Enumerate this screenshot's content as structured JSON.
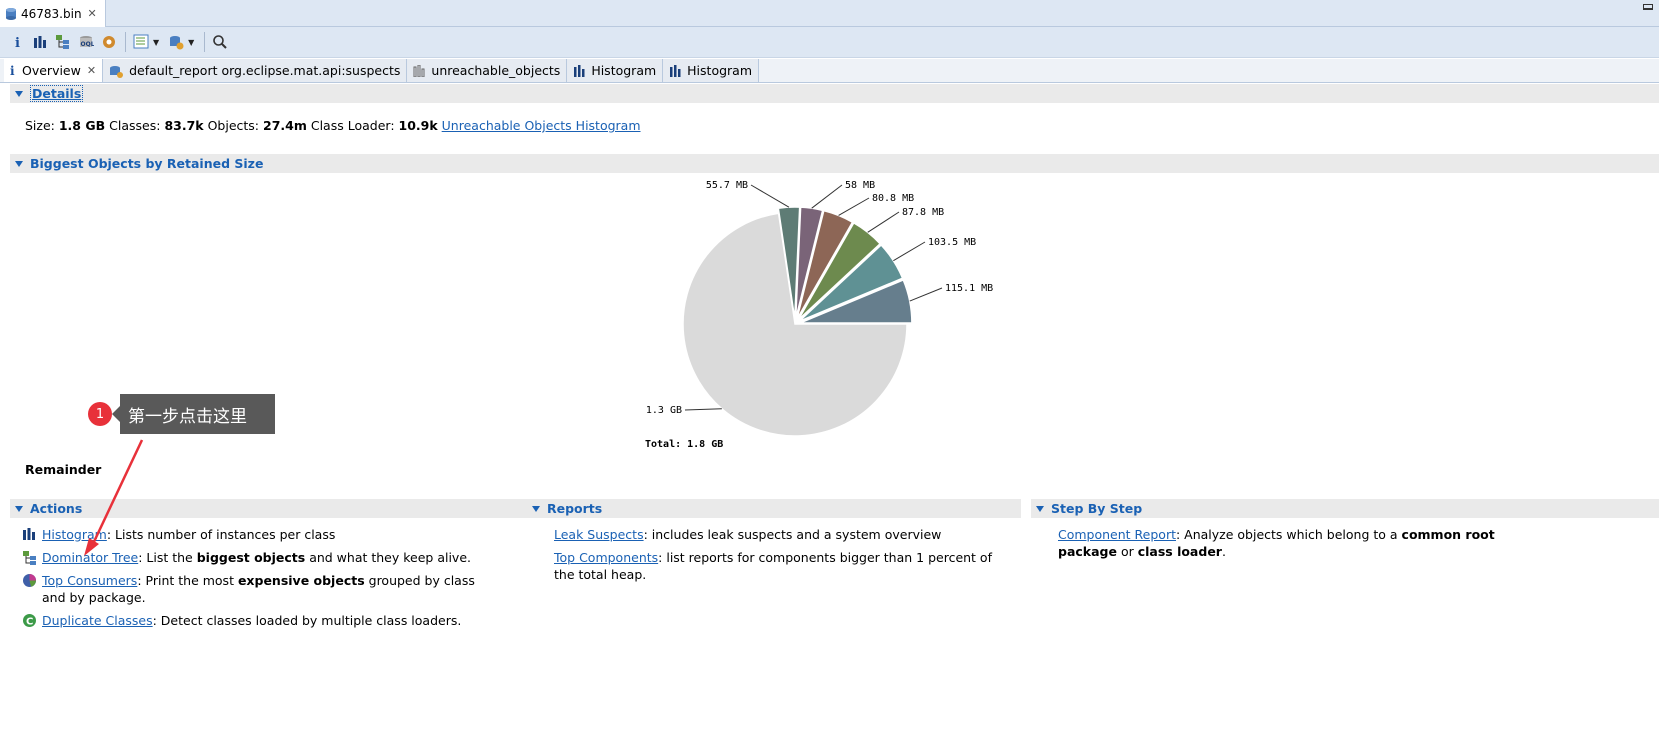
{
  "editor_tab": {
    "label": "46783.bin",
    "close": "✕"
  },
  "subtabs": [
    {
      "label": "Overview",
      "icon": "info-icon",
      "active": true
    },
    {
      "label": "default_report  org.eclipse.mat.api:suspects",
      "icon": "report-icon"
    },
    {
      "label": "unreachable_objects",
      "icon": "histogram-icon"
    },
    {
      "label": "Histogram",
      "icon": "histogram-icon"
    },
    {
      "label": "Histogram",
      "icon": "histogram-icon"
    }
  ],
  "details": {
    "title": "Details",
    "size_label": "Size:",
    "size_value": "1.8 GB",
    "classes_label": "Classes:",
    "classes_value": "83.7k",
    "objects_label": "Objects:",
    "objects_value": "27.4m",
    "loader_label": "Class Loader:",
    "loader_value": "10.9k",
    "link": "Unreachable Objects Histogram"
  },
  "biggest": {
    "title": "Biggest Objects by Retained Size",
    "total": "Total: 1.8 GB",
    "remainder": "Remainder"
  },
  "chart_data": {
    "type": "pie",
    "slices": [
      {
        "label": "115.1 MB",
        "value": 115.1,
        "color": "#667e8d"
      },
      {
        "label": "103.5 MB",
        "value": 103.5,
        "color": "#5f9194"
      },
      {
        "label": "87.8 MB",
        "value": 87.8,
        "color": "#6d8a4e"
      },
      {
        "label": "80.8 MB",
        "value": 80.8,
        "color": "#8d6656"
      },
      {
        "label": "58 MB",
        "value": 58,
        "color": "#7a6478"
      },
      {
        "label": "55.7 MB",
        "value": 55.7,
        "color": "#5e7c75"
      },
      {
        "label": "1.3 GB",
        "value": 1331.2,
        "color": "#dadada"
      }
    ],
    "total_label": "Total: 1.8 GB"
  },
  "actions": {
    "title": "Actions",
    "items": [
      {
        "link": "Histogram",
        "text": ": Lists number of instances per class"
      },
      {
        "link": "Dominator Tree",
        "pre": ": List the ",
        "bold": "biggest objects",
        "post": " and what they keep alive."
      },
      {
        "link": "Top Consumers",
        "pre": ": Print the most ",
        "bold": "expensive objects",
        "post": " grouped by class and by package."
      },
      {
        "link": "Duplicate Classes",
        "text": ": Detect classes loaded by multiple class loaders."
      }
    ]
  },
  "reports": {
    "title": "Reports",
    "items": [
      {
        "link": "Leak Suspects",
        "text": ": includes leak suspects and a system overview"
      },
      {
        "link": "Top Components",
        "text": ": list reports for components bigger than 1 percent of the total heap."
      }
    ]
  },
  "stepbystep": {
    "title": "Step By Step",
    "item": {
      "link": "Component Report",
      "pre": ": Analyze objects which belong to a ",
      "bold1": "common root package",
      "mid": " or ",
      "bold2": "class loader",
      "post": "."
    }
  },
  "annotation": {
    "number": "1",
    "text": "第一步点击这里"
  }
}
